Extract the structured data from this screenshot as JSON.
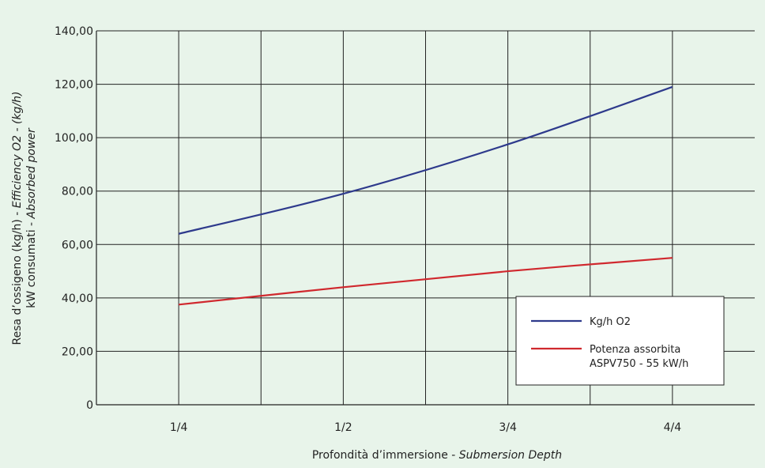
{
  "chart_data": {
    "type": "line",
    "xlabel_main": "Profondità d’immersione - ",
    "xlabel_italic": "Submersion Depth",
    "ylabel_line1_main": "Resa d’ossigeno (kg/h) - ",
    "ylabel_line1_italic": "Efficiency O2 - (kg/h)",
    "ylabel_line2_main": "kW consumati - ",
    "ylabel_line2_italic": "Absorbed power",
    "categories": [
      "1/4",
      "1/2",
      "3/4",
      "4/4"
    ],
    "y_ticks": [
      "0",
      "20,00",
      "40,00",
      "60,00",
      "80,00",
      "100,00",
      "120,00",
      "140,00"
    ],
    "ylim": [
      0,
      140
    ],
    "grid": true,
    "series": [
      {
        "name": "Kg/h O2",
        "color": "#2e3a8c",
        "values": [
          64,
          79,
          97.5,
          119
        ]
      },
      {
        "name_line1": "Potenza assorbita",
        "name_line2": "ASPV750 - 55 kW/h",
        "color": "#d0282e",
        "values": [
          37.5,
          44,
          50,
          55
        ]
      }
    ],
    "legend_position": "bottom-right"
  }
}
